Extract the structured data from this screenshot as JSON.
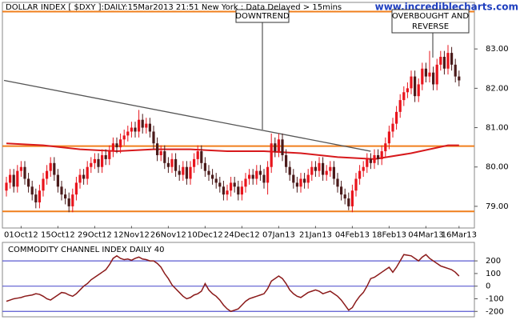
{
  "chart_data": [
    {
      "type": "candlestick",
      "title": "DOLLAR INDEX [ $DXY ]:DAILY:15Mar2013 21:51 New York : Data Delayed > 15mins",
      "watermark": "www.incrediblecharts.com",
      "categories": [
        null,
        null,
        null,
        null,
        "01Oct12",
        null,
        null,
        null,
        null,
        null,
        null,
        null,
        null,
        null,
        "15Oct12",
        null,
        null,
        null,
        null,
        null,
        null,
        null,
        null,
        null,
        "29Oct12",
        null,
        null,
        null,
        null,
        null,
        null,
        null,
        null,
        null,
        "12Nov12",
        null,
        null,
        null,
        null,
        null,
        null,
        null,
        null,
        null,
        "26Nov12",
        null,
        null,
        null,
        null,
        null,
        null,
        null,
        null,
        null,
        "10Dec12",
        null,
        null,
        null,
        null,
        null,
        null,
        null,
        null,
        null,
        "24Dec12",
        null,
        null,
        null,
        null,
        null,
        null,
        null,
        null,
        null,
        "07Jan13",
        null,
        null,
        null,
        null,
        null,
        null,
        null,
        null,
        null,
        "21Jan13",
        null,
        null,
        null,
        null,
        null,
        null,
        null,
        null,
        null,
        "04Feb13",
        null,
        null,
        null,
        null,
        null,
        null,
        null,
        null,
        null,
        "18Feb13",
        null,
        null,
        null,
        null,
        null,
        null,
        null,
        null,
        null,
        "04Mar13",
        null,
        null,
        null,
        null,
        null,
        null,
        null,
        null,
        "16Mar13"
      ],
      "open": [
        79.4,
        79.6,
        79.8,
        79.5,
        79.9,
        80.0,
        79.7,
        79.5,
        79.3,
        79.1,
        79.4,
        79.7,
        79.9,
        80.1,
        79.8,
        79.5,
        79.3,
        79.2,
        79.0,
        79.3,
        79.6,
        79.8,
        79.7,
        80.0,
        80.1,
        80.2,
        80.0,
        80.3,
        80.2,
        80.4,
        80.6,
        80.5,
        80.7,
        80.8,
        80.9,
        81.0,
        80.9,
        81.2,
        81.0,
        81.1,
        80.9,
        80.6,
        80.3,
        80.4,
        80.1,
        80.0,
        80.2,
        79.9,
        79.8,
        80.0,
        79.7,
        80.0,
        80.2,
        80.4,
        80.1,
        79.9,
        79.8,
        79.7,
        79.6,
        79.5,
        79.3,
        79.4,
        79.6,
        79.5,
        79.3,
        79.5,
        79.7,
        79.8,
        79.7,
        79.9,
        79.8,
        79.6,
        80.0,
        80.6,
        80.4,
        80.7,
        80.3,
        80.0,
        79.8,
        79.6,
        79.5,
        79.7,
        79.6,
        79.8,
        80.0,
        79.9,
        80.1,
        79.8,
        79.9,
        80.0,
        79.7,
        79.5,
        79.3,
        79.2,
        79.0,
        79.4,
        79.7,
        79.9,
        80.0,
        80.2,
        80.1,
        80.3,
        80.2,
        80.4,
        80.6,
        80.9,
        81.1,
        81.4,
        81.7,
        81.9,
        82.0,
        82.3,
        81.8,
        82.1,
        82.5,
        82.3,
        82.4,
        82.1,
        82.6,
        82.8,
        82.5,
        82.9,
        82.6,
        82.3
      ],
      "high": [
        79.75,
        79.95,
        79.95,
        80.05,
        80.15,
        80.15,
        79.85,
        79.65,
        79.45,
        79.55,
        79.85,
        80.05,
        80.25,
        80.25,
        79.95,
        79.65,
        79.45,
        79.35,
        79.45,
        79.75,
        79.95,
        79.95,
        80.15,
        80.25,
        80.35,
        80.35,
        80.45,
        80.45,
        80.55,
        80.75,
        80.75,
        80.85,
        80.95,
        81.05,
        81.15,
        81.15,
        81.45,
        81.35,
        81.25,
        81.25,
        81.05,
        80.75,
        80.55,
        80.55,
        80.25,
        80.35,
        80.35,
        80.05,
        80.15,
        80.15,
        80.15,
        80.35,
        80.55,
        80.55,
        80.25,
        80.05,
        79.95,
        79.85,
        79.75,
        79.65,
        79.55,
        79.75,
        79.75,
        79.65,
        79.65,
        79.85,
        79.95,
        79.95,
        80.05,
        80.05,
        79.95,
        80.15,
        80.85,
        80.75,
        80.85,
        80.85,
        80.45,
        80.15,
        79.95,
        79.75,
        79.85,
        79.85,
        79.95,
        80.15,
        80.15,
        80.25,
        80.25,
        80.05,
        80.15,
        80.15,
        79.85,
        79.65,
        79.45,
        79.35,
        79.55,
        79.85,
        80.05,
        80.15,
        80.35,
        80.35,
        80.45,
        80.45,
        80.55,
        80.75,
        81.05,
        81.25,
        81.55,
        81.85,
        82.05,
        82.15,
        82.45,
        82.45,
        82.25,
        82.65,
        82.65,
        82.95,
        82.55,
        82.75,
        82.95,
        82.95,
        83.1,
        83.05,
        82.75,
        82.45
      ],
      "low": [
        79.25,
        79.45,
        79.35,
        79.35,
        79.75,
        79.55,
        79.35,
        79.15,
        78.95,
        78.95,
        79.25,
        79.55,
        79.75,
        79.65,
        79.35,
        79.15,
        79.05,
        78.85,
        78.85,
        79.15,
        79.45,
        79.55,
        79.55,
        79.85,
        79.95,
        79.85,
        79.85,
        80.05,
        80.05,
        80.25,
        80.35,
        80.35,
        80.55,
        80.65,
        80.75,
        80.75,
        80.75,
        80.85,
        80.85,
        80.75,
        80.45,
        80.15,
        80.15,
        79.95,
        79.85,
        79.85,
        79.75,
        79.65,
        79.65,
        79.55,
        79.55,
        79.85,
        80.05,
        79.95,
        79.75,
        79.65,
        79.55,
        79.45,
        79.35,
        79.15,
        79.15,
        79.25,
        79.35,
        79.15,
        79.15,
        79.35,
        79.55,
        79.55,
        79.55,
        79.65,
        79.45,
        79.3,
        79.85,
        80.25,
        80.25,
        80.15,
        79.85,
        79.65,
        79.45,
        79.35,
        79.35,
        79.45,
        79.45,
        79.65,
        79.75,
        79.75,
        79.65,
        79.65,
        79.75,
        79.55,
        79.35,
        79.15,
        79.05,
        78.9,
        78.85,
        79.25,
        79.55,
        79.75,
        79.85,
        79.95,
        79.95,
        80.05,
        80.05,
        80.25,
        80.45,
        80.75,
        80.95,
        81.25,
        81.55,
        81.75,
        81.85,
        81.65,
        81.65,
        81.95,
        82.15,
        82.15,
        81.95,
        81.95,
        82.45,
        82.35,
        82.35,
        82.45,
        82.15,
        82.05
      ],
      "close": [
        79.6,
        79.8,
        79.5,
        79.9,
        80.0,
        79.7,
        79.5,
        79.3,
        79.1,
        79.4,
        79.7,
        79.9,
        80.1,
        79.8,
        79.5,
        79.3,
        79.2,
        79.0,
        79.3,
        79.6,
        79.8,
        79.7,
        80.0,
        80.1,
        80.2,
        80.0,
        80.3,
        80.2,
        80.4,
        80.6,
        80.5,
        80.7,
        80.8,
        80.9,
        81.0,
        80.9,
        81.2,
        81.0,
        81.1,
        80.9,
        80.6,
        80.3,
        80.4,
        80.1,
        80.0,
        80.2,
        79.9,
        79.8,
        80.0,
        79.7,
        80.0,
        80.2,
        80.4,
        80.1,
        79.9,
        79.8,
        79.7,
        79.6,
        79.5,
        79.3,
        79.4,
        79.6,
        79.5,
        79.3,
        79.5,
        79.7,
        79.8,
        79.7,
        79.9,
        79.8,
        79.6,
        80.0,
        80.6,
        80.4,
        80.7,
        80.3,
        80.0,
        79.8,
        79.6,
        79.5,
        79.7,
        79.6,
        79.8,
        80.0,
        79.9,
        80.1,
        79.8,
        79.9,
        80.0,
        79.7,
        79.5,
        79.3,
        79.2,
        79.0,
        79.4,
        79.7,
        79.9,
        80.0,
        80.2,
        80.1,
        80.3,
        80.2,
        80.4,
        80.6,
        80.9,
        81.1,
        81.4,
        81.7,
        81.9,
        82.0,
        82.3,
        81.8,
        82.1,
        82.5,
        82.3,
        82.4,
        82.1,
        82.6,
        82.8,
        82.5,
        82.9,
        82.6,
        82.3,
        82.2
      ],
      "up_color": "#e8141c",
      "down_color": "#4a1a1a",
      "moving_average": {
        "color": "#d7191c",
        "x": [
          0,
          10,
          20,
          30,
          40,
          50,
          60,
          70,
          80,
          90,
          100,
          110,
          120,
          123
        ],
        "values": [
          80.6,
          80.55,
          80.45,
          80.4,
          80.45,
          80.45,
          80.4,
          80.4,
          80.35,
          80.25,
          80.2,
          80.35,
          80.55,
          80.55
        ]
      },
      "trendline": {
        "color": "#555555",
        "x": [
          0,
          99
        ],
        "values": [
          82.2,
          80.4
        ]
      },
      "levels": {
        "color": "#f07f1c",
        "values": [
          83.95,
          80.53,
          78.87
        ]
      },
      "annotations": [
        {
          "lines": [
            "DOWNTREND"
          ]
        },
        {
          "lines": [
            "OVERBOUGHT AND",
            "REVERSE"
          ]
        }
      ],
      "ylim": [
        78.5,
        84.0
      ],
      "yticks": [
        {
          "value": 79,
          "label": "79.00"
        },
        {
          "value": 80,
          "label": "80.00"
        },
        {
          "value": 81,
          "label": "81.00"
        },
        {
          "value": 82,
          "label": "82.00"
        },
        {
          "value": 83,
          "label": "83.00"
        }
      ]
    },
    {
      "type": "line",
      "title": "COMMODITY CHANNEL INDEX DAILY 40",
      "color": "#8b1a1a",
      "values": [
        -120,
        -110,
        -100,
        -95,
        -90,
        -80,
        -75,
        -70,
        -60,
        -65,
        -80,
        -100,
        -110,
        -90,
        -70,
        -50,
        -55,
        -70,
        -80,
        -60,
        -30,
        0,
        20,
        50,
        70,
        90,
        110,
        130,
        170,
        220,
        240,
        220,
        210,
        215,
        205,
        220,
        230,
        215,
        210,
        200,
        200,
        180,
        150,
        100,
        60,
        10,
        -20,
        -50,
        -80,
        -100,
        -90,
        -70,
        -60,
        -40,
        20,
        -30,
        -60,
        -80,
        -110,
        -150,
        -180,
        -200,
        -190,
        -180,
        -150,
        -120,
        -100,
        -90,
        -80,
        -70,
        -60,
        -20,
        40,
        60,
        80,
        60,
        20,
        -30,
        -60,
        -80,
        -90,
        -70,
        -50,
        -40,
        -30,
        -40,
        -60,
        -50,
        -40,
        -60,
        -80,
        -110,
        -150,
        -190,
        -170,
        -120,
        -80,
        -50,
        0,
        60,
        70,
        90,
        110,
        130,
        150,
        110,
        150,
        200,
        250,
        245,
        240,
        220,
        200,
        230,
        250,
        220,
        200,
        180,
        160,
        150,
        140,
        130,
        110,
        80
      ],
      "reference_lines": {
        "color": "#5a5ad0",
        "values": [
          200,
          0,
          -200
        ]
      },
      "ylim": [
        -230,
        340
      ],
      "yticks": [
        200,
        100,
        0,
        -100,
        -200
      ]
    }
  ]
}
